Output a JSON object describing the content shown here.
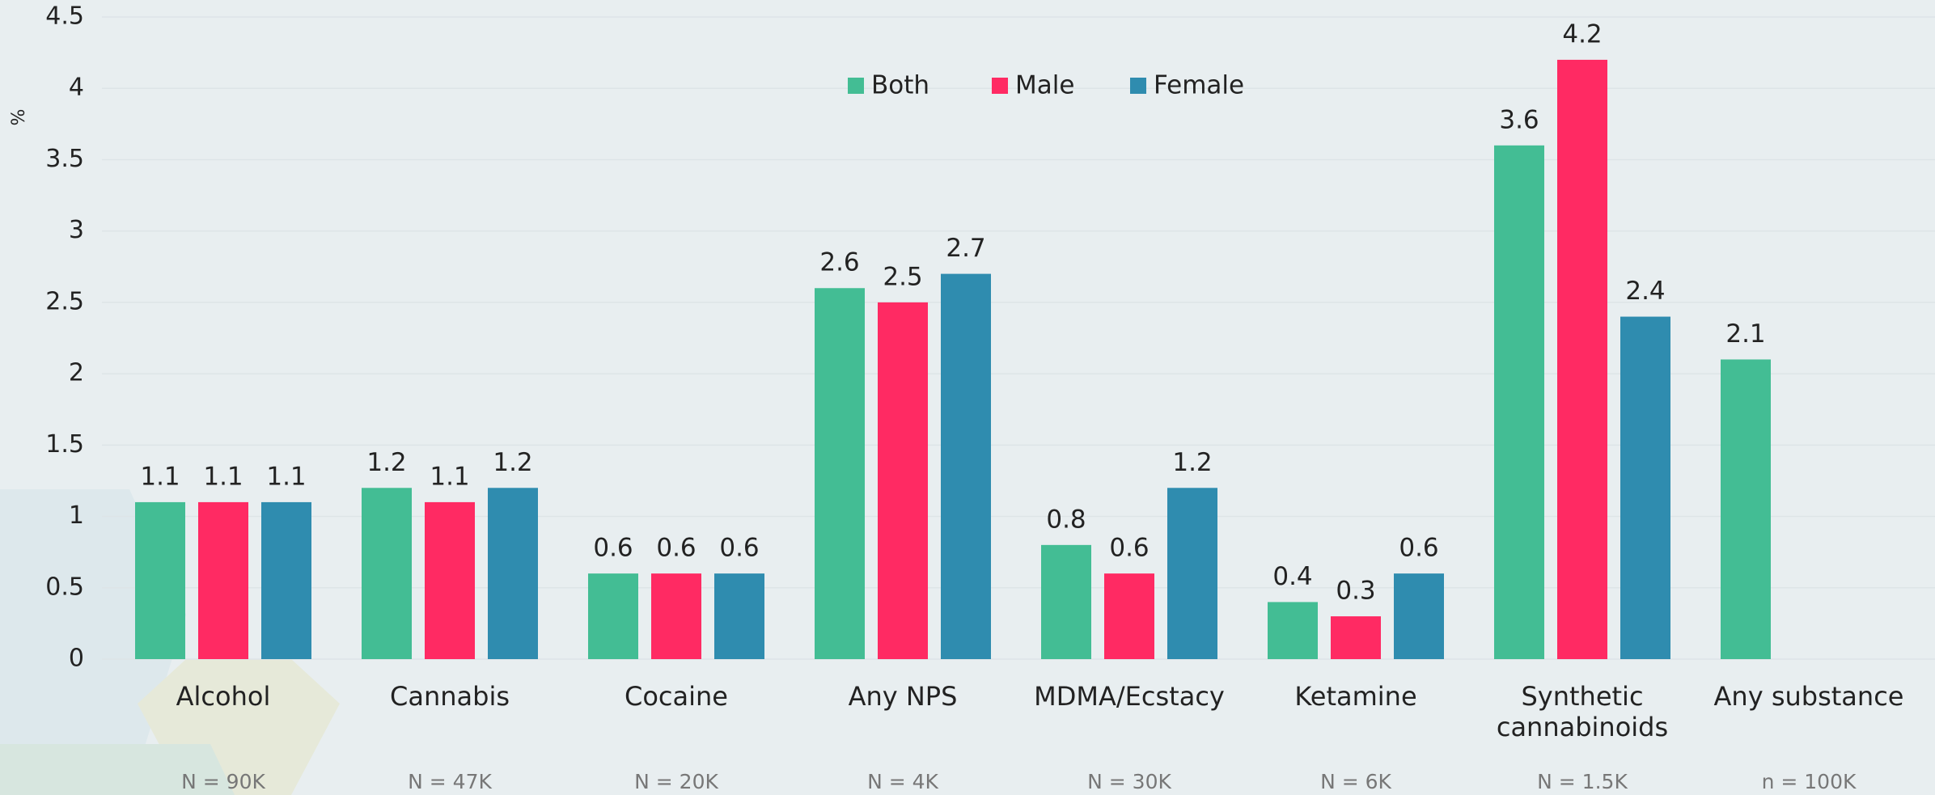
{
  "chart_data": {
    "type": "bar",
    "y_label": "%",
    "categories": [
      "Alcohol",
      "Cannabis",
      "Cocaine",
      "Any NPS",
      "MDMA/Ecstacy",
      "Ketamine",
      "Synthetic cannabinoids",
      "Any substance"
    ],
    "sample_sizes": [
      "N = 90K",
      "N = 47K",
      "N = 20K",
      "N = 4K",
      "N = 30K",
      "N = 6K",
      "N = 1.5K",
      "n = 100K"
    ],
    "series": [
      {
        "name": "Both",
        "color": "#43bd94",
        "values": [
          1.1,
          1.2,
          0.6,
          2.6,
          0.8,
          0.4,
          3.6,
          2.1
        ]
      },
      {
        "name": "Male",
        "color": "#ff2a63",
        "values": [
          1.1,
          1.1,
          0.6,
          2.5,
          0.6,
          0.3,
          4.2,
          null
        ]
      },
      {
        "name": "Female",
        "color": "#2f8caf",
        "values": [
          1.1,
          1.2,
          0.6,
          2.7,
          1.2,
          0.6,
          2.4,
          null
        ]
      }
    ],
    "ylim": [
      0,
      4.5
    ],
    "yticks": [
      0,
      0.5,
      1,
      1.5,
      2,
      2.5,
      3,
      3.5,
      4,
      4.5
    ],
    "grid": true,
    "legend": "top"
  }
}
